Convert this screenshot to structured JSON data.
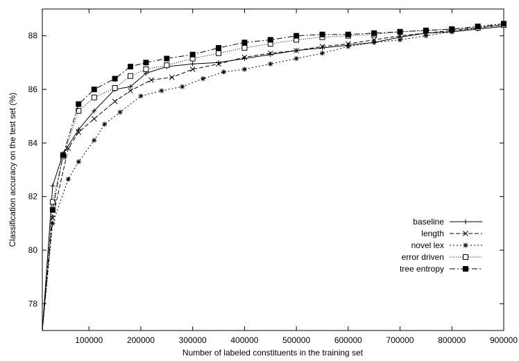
{
  "chart_data": {
    "type": "line",
    "title": "",
    "xlabel": "Number of labeled constituents in the training set",
    "ylabel": "Classification accuracy on the test set (%)",
    "xlim": [
      10000,
      900000
    ],
    "ylim": [
      77,
      89
    ],
    "x_ticks": [
      100000,
      200000,
      300000,
      400000,
      500000,
      600000,
      700000,
      800000,
      900000
    ],
    "y_ticks": [
      78,
      80,
      82,
      84,
      86,
      88
    ],
    "grid": false,
    "legend_position": "right",
    "series": [
      {
        "name": "baseline",
        "marker": "plus",
        "dash": "",
        "x": [
          10000,
          30000,
          50000,
          80000,
          110000,
          150000,
          180000,
          210000,
          250000,
          300000,
          350000,
          400000,
          450000,
          500000,
          550000,
          600000,
          650000,
          700000,
          750000,
          800000,
          850000,
          900000
        ],
        "y": [
          77.0,
          82.4,
          83.6,
          84.5,
          85.2,
          86.0,
          86.1,
          86.6,
          86.85,
          86.95,
          87.0,
          87.15,
          87.3,
          87.45,
          87.55,
          87.65,
          87.75,
          87.95,
          88.1,
          88.15,
          88.25,
          88.35
        ]
      },
      {
        "name": "length",
        "marker": "x",
        "dash": "6,3",
        "x": [
          10000,
          30000,
          60000,
          80000,
          110000,
          150000,
          180000,
          220000,
          260000,
          300000,
          350000,
          400000,
          450000,
          500000,
          550000,
          600000,
          650000,
          700000,
          750000,
          800000,
          850000,
          900000
        ],
        "y": [
          77.0,
          81.2,
          83.8,
          84.4,
          84.9,
          85.55,
          85.95,
          86.35,
          86.45,
          86.75,
          86.95,
          87.2,
          87.35,
          87.45,
          87.6,
          87.7,
          87.85,
          88.0,
          88.1,
          88.2,
          88.3,
          88.4
        ]
      },
      {
        "name": "novel lex",
        "marker": "star",
        "dash": "2,3",
        "x": [
          10000,
          30000,
          60000,
          80000,
          110000,
          130000,
          160000,
          200000,
          240000,
          280000,
          320000,
          360000,
          400000,
          450000,
          500000,
          550000,
          600000,
          650000,
          700000,
          750000,
          800000,
          850000,
          900000
        ],
        "y": [
          77.0,
          81.0,
          82.65,
          83.3,
          84.1,
          84.7,
          85.15,
          85.75,
          85.95,
          86.1,
          86.4,
          86.65,
          86.75,
          86.95,
          87.15,
          87.35,
          87.6,
          87.75,
          87.85,
          88.0,
          88.15,
          88.3,
          88.45
        ]
      },
      {
        "name": "error driven",
        "marker": "square-open",
        "dash": "1,2",
        "x": [
          10000,
          30000,
          50000,
          80000,
          110000,
          150000,
          180000,
          210000,
          250000,
          300000,
          350000,
          400000,
          450000,
          500000,
          550000,
          600000,
          650000,
          700000,
          750000,
          800000,
          850000,
          900000
        ],
        "y": [
          77.0,
          81.8,
          83.5,
          85.2,
          85.7,
          86.05,
          86.5,
          86.75,
          86.9,
          87.15,
          87.35,
          87.55,
          87.7,
          87.85,
          87.95,
          88.0,
          88.05,
          88.15,
          88.2,
          88.25,
          88.3,
          88.4
        ]
      },
      {
        "name": "tree entropy",
        "marker": "square-filled",
        "dash": "8,3,2,3",
        "x": [
          10000,
          30000,
          50000,
          80000,
          110000,
          150000,
          180000,
          210000,
          250000,
          300000,
          350000,
          400000,
          450000,
          500000,
          550000,
          600000,
          650000,
          700000,
          750000,
          800000,
          850000,
          900000
        ],
        "y": [
          77.0,
          81.5,
          83.55,
          85.45,
          86.0,
          86.4,
          86.85,
          87.0,
          87.15,
          87.3,
          87.55,
          87.75,
          87.85,
          88.0,
          88.05,
          88.05,
          88.1,
          88.15,
          88.2,
          88.25,
          88.35,
          88.45
        ]
      }
    ]
  }
}
